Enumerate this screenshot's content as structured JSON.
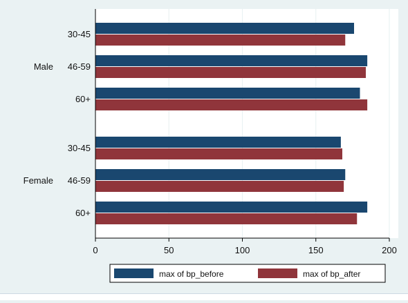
{
  "chart_data": {
    "type": "bar",
    "orientation": "horizontal",
    "groups": [
      {
        "label": "Male",
        "categories": [
          "30-45",
          "46-59",
          "60+"
        ]
      },
      {
        "label": "Female",
        "categories": [
          "30-45",
          "46-59",
          "60+"
        ]
      }
    ],
    "series": [
      {
        "name": "max of bp_before",
        "color": "#1a476f",
        "values": [
          [
            176,
            185,
            180
          ],
          [
            167,
            170,
            185
          ]
        ]
      },
      {
        "name": "max of bp_after",
        "color": "#90353b",
        "values": [
          [
            170,
            184,
            185
          ],
          [
            168,
            169,
            178
          ]
        ]
      }
    ],
    "xlim": [
      0,
      200
    ],
    "xticks": [
      0,
      50,
      100,
      150,
      200
    ],
    "grid": true,
    "legend_position": "bottom",
    "background_color": "#eaf2f3",
    "plot_background_color": "#ffffff",
    "grid_color": "#eaf2f3"
  }
}
